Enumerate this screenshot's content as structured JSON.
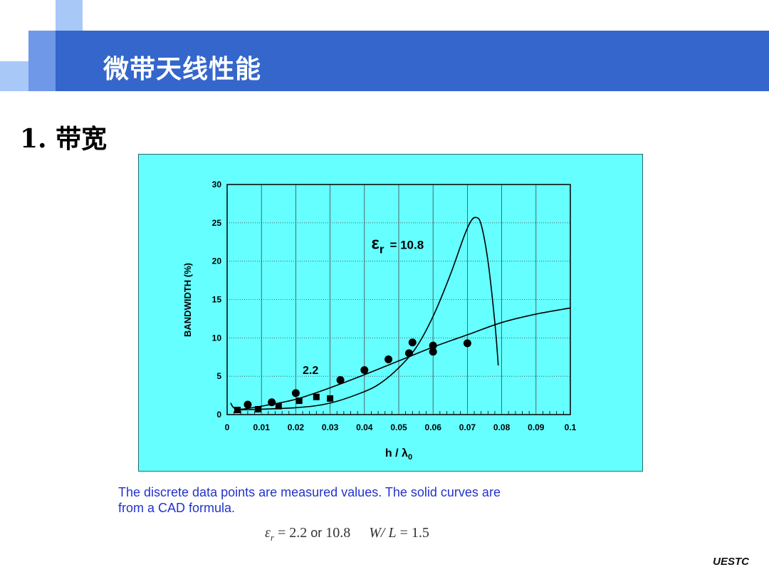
{
  "header": {
    "title": "微带天线性能"
  },
  "section": {
    "heading": "1. 带宽"
  },
  "colors": {
    "header_bar": "#3466cc",
    "panel_bg": "#66ffff",
    "caption_text": "#2233cc"
  },
  "chart_data": {
    "type": "scatter",
    "xlabel": "h / λ",
    "xlabel_sub": "0",
    "ylabel": "BANDWIDTH (%)",
    "xlim": [
      0,
      0.1
    ],
    "ylim": [
      0,
      30
    ],
    "x_ticks": [
      "0",
      "0.01",
      "0.02",
      "0.03",
      "0.04",
      "0.05",
      "0.06",
      "0.07",
      "0.08",
      "0.09",
      "0.1"
    ],
    "y_ticks": [
      "0",
      "5",
      "10",
      "15",
      "20",
      "25",
      "30"
    ],
    "grid": true,
    "annotations": [
      {
        "symbol": "ε",
        "sub": "r",
        "text": "= 10.8",
        "x": 0.042,
        "y": 21.6
      },
      {
        "text": "2.2",
        "x": 0.022,
        "y": 5.3
      }
    ],
    "series": [
      {
        "marker": "circle",
        "points": [
          [
            0.006,
            1.3
          ],
          [
            0.013,
            1.6
          ],
          [
            0.02,
            2.8
          ],
          [
            0.033,
            4.5
          ],
          [
            0.04,
            5.8
          ],
          [
            0.047,
            7.2
          ],
          [
            0.053,
            8.0
          ],
          [
            0.054,
            9.4
          ],
          [
            0.06,
            8.2
          ],
          [
            0.06,
            9.0
          ],
          [
            0.07,
            9.3
          ]
        ]
      },
      {
        "marker": "square",
        "points": [
          [
            0.003,
            0.6
          ],
          [
            0.009,
            0.7
          ],
          [
            0.015,
            1.1
          ],
          [
            0.021,
            1.8
          ],
          [
            0.026,
            2.3
          ],
          [
            0.03,
            2.1
          ]
        ]
      },
      {
        "style": "line",
        "points": [
          [
            0.001,
            1.5
          ],
          [
            0.003,
            0.7
          ],
          [
            0.01,
            1.1
          ],
          [
            0.02,
            2.0
          ],
          [
            0.03,
            3.5
          ],
          [
            0.04,
            5.2
          ],
          [
            0.05,
            7.0
          ],
          [
            0.06,
            8.8
          ],
          [
            0.07,
            10.4
          ],
          [
            0.08,
            12.0
          ],
          [
            0.09,
            13.1
          ],
          [
            0.1,
            13.9
          ]
        ]
      },
      {
        "style": "line",
        "points": [
          [
            0.003,
            0.6
          ],
          [
            0.02,
            0.9
          ],
          [
            0.03,
            1.5
          ],
          [
            0.04,
            3.0
          ],
          [
            0.045,
            4.2
          ],
          [
            0.05,
            6.1
          ],
          [
            0.055,
            8.7
          ],
          [
            0.06,
            12.8
          ],
          [
            0.065,
            18.2
          ],
          [
            0.069,
            23.2
          ],
          [
            0.071,
            25.2
          ],
          [
            0.0725,
            25.7
          ],
          [
            0.074,
            24.8
          ],
          [
            0.076,
            20.0
          ],
          [
            0.078,
            12.0
          ],
          [
            0.079,
            6.4
          ]
        ]
      }
    ]
  },
  "caption": {
    "line1": "The discrete data points are measured values. The solid curves are",
    "line2": "from a CAD formula."
  },
  "params": {
    "er_symbol": "ε",
    "er_sub": "r",
    "eq1": " = 2.2 ",
    "or": "or",
    "val2": " 10.8",
    "wl": "W/ L",
    "eq2": " = 1.5"
  },
  "footer": {
    "label": "UESTC"
  }
}
